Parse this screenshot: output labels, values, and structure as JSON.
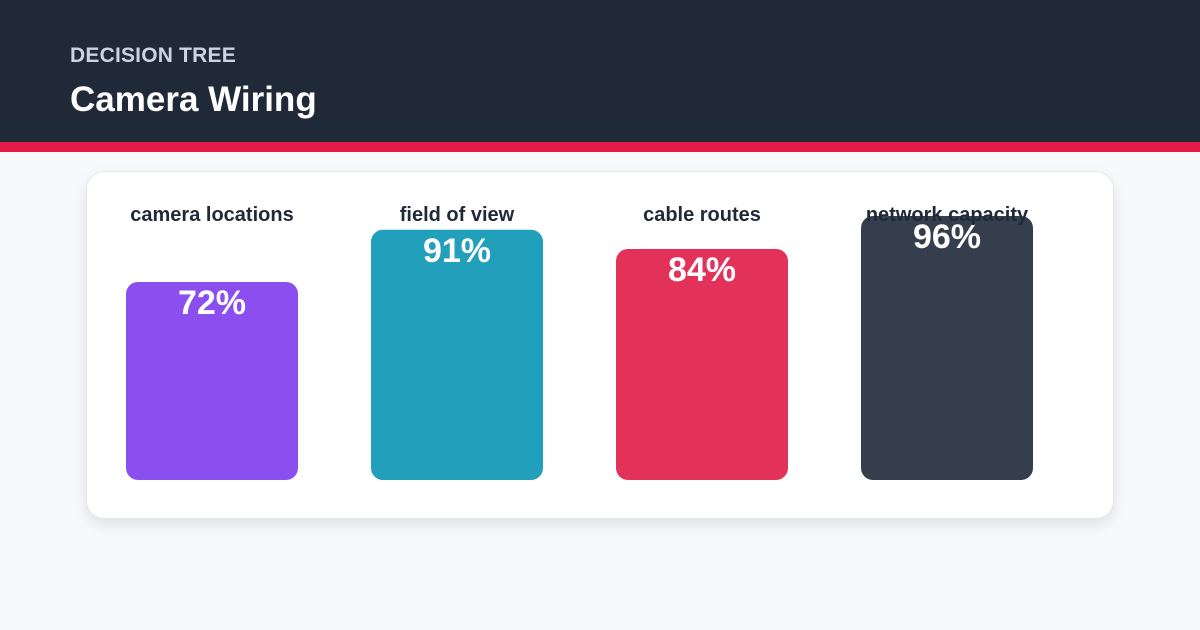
{
  "header": {
    "eyebrow": "DECISION TREE",
    "title": "Camera Wiring",
    "background_color": "#1f2937",
    "accent_color": "#e11d48"
  },
  "chart_data": {
    "type": "bar",
    "categories": [
      "camera locations",
      "field of view",
      "cable routes",
      "network capacity"
    ],
    "values": [
      72,
      91,
      84,
      96
    ],
    "value_labels": [
      "72%",
      "91%",
      "84%",
      "96%"
    ],
    "unit": "%",
    "colors": [
      "#8b4ff0",
      "#229fbb",
      "#e3325a",
      "#343e4c"
    ],
    "ylim": [
      0,
      100
    ],
    "grid": false,
    "legend": "none"
  }
}
